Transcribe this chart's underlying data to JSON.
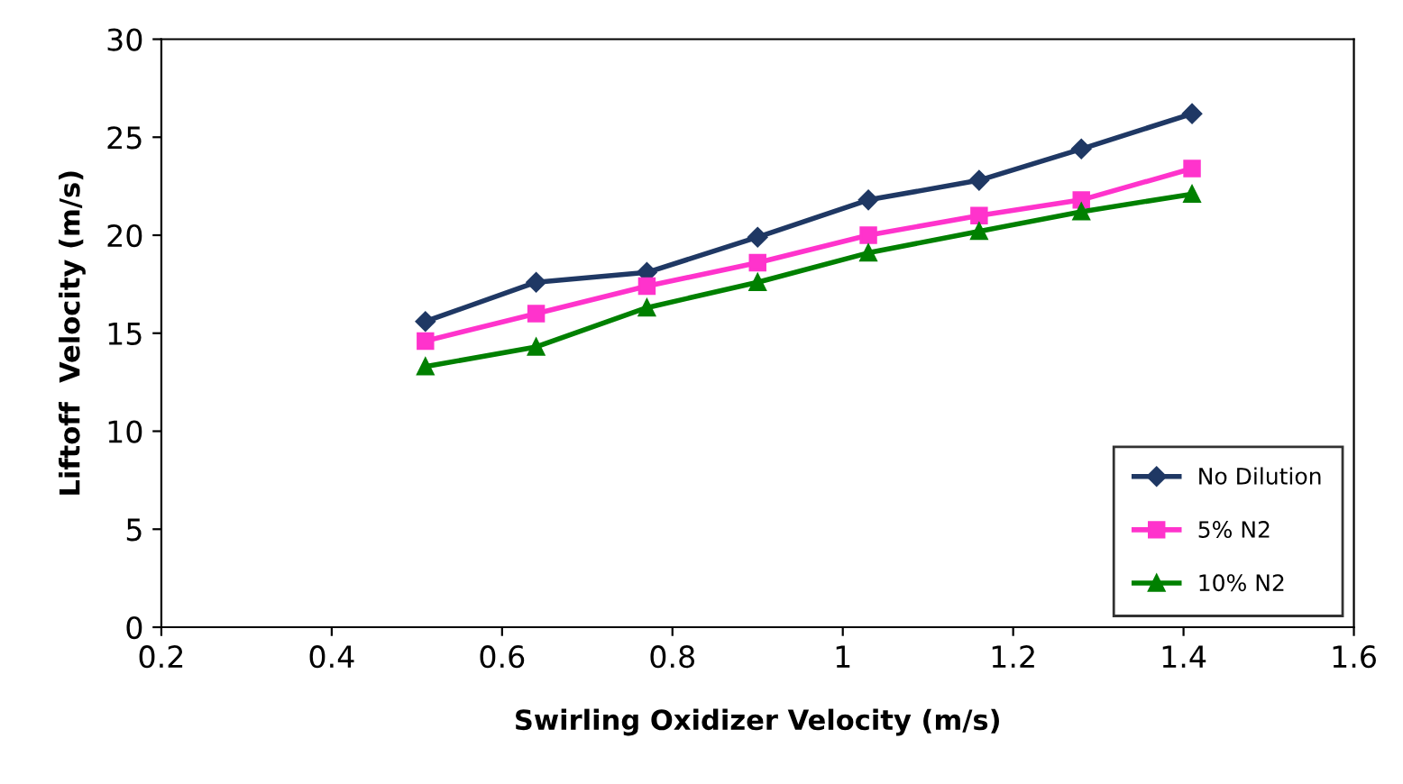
{
  "chart_data": {
    "type": "line",
    "xlabel": "Swirling Oxidizer Velocity (m/s)",
    "ylabel": "Liftoff  Velocity (m/s)",
    "x": [
      0.51,
      0.64,
      0.77,
      0.9,
      1.03,
      1.16,
      1.28,
      1.41
    ],
    "series": [
      {
        "name": "No Dilution",
        "color": "#1f3864",
        "marker": "diamond",
        "values": [
          15.6,
          17.6,
          18.1,
          19.9,
          21.8,
          22.8,
          24.4,
          26.2
        ]
      },
      {
        "name": "5% N2",
        "color": "#ff33cc",
        "marker": "square",
        "values": [
          14.6,
          16.0,
          17.4,
          18.6,
          20.0,
          21.0,
          21.8,
          23.4
        ]
      },
      {
        "name": "10% N2",
        "color": "#008000",
        "marker": "triangle",
        "values": [
          13.3,
          14.3,
          16.3,
          17.6,
          19.1,
          20.2,
          21.2,
          22.1
        ]
      }
    ],
    "xlim": [
      0.2,
      1.6
    ],
    "xticks": [
      0.2,
      0.4,
      0.6,
      0.8,
      1,
      1.2,
      1.4,
      1.6
    ],
    "ylim": [
      0,
      30
    ],
    "yticks": [
      0,
      5,
      10,
      15,
      20,
      25,
      30
    ],
    "grid": false,
    "legend": "bottom right",
    "line_style": "solid"
  }
}
